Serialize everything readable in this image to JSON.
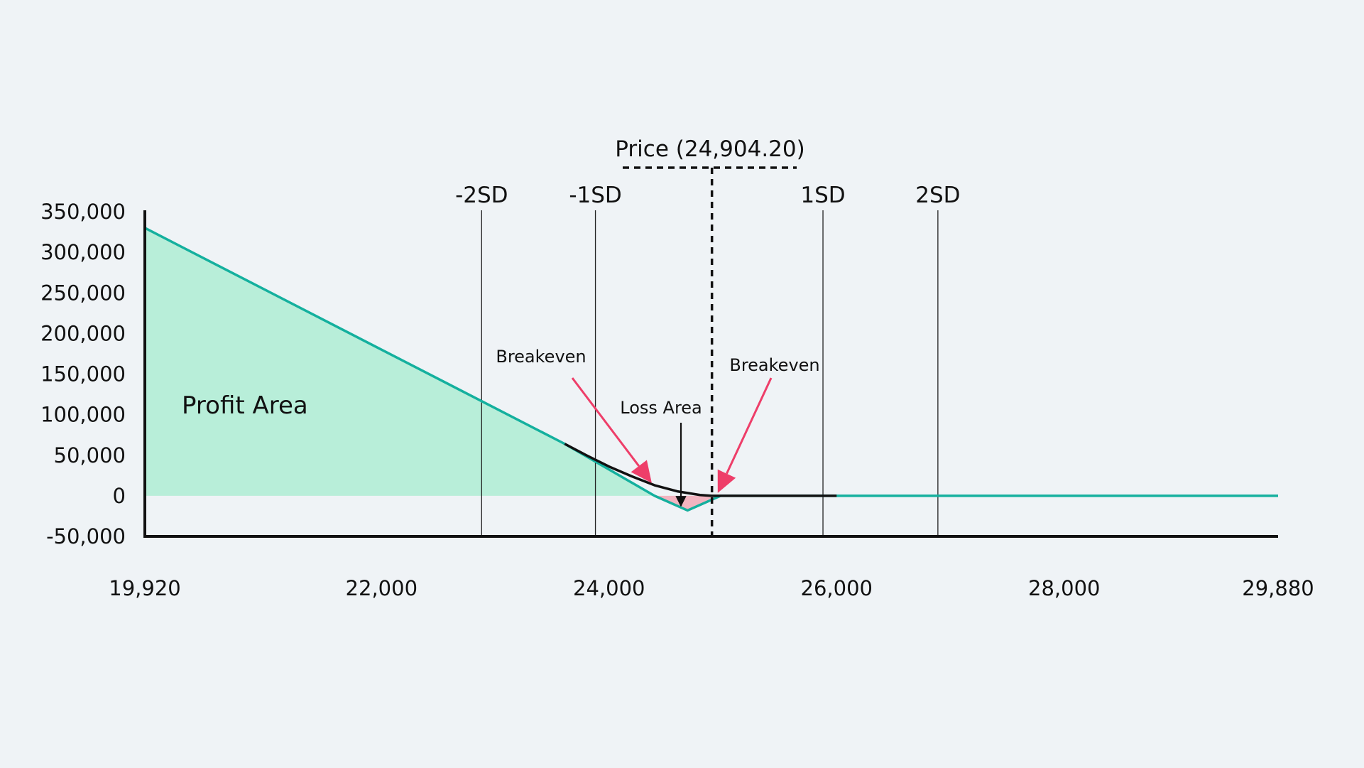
{
  "chart_data": {
    "type": "area",
    "title": "",
    "xlabel": "",
    "ylabel": "",
    "xlim": [
      19920,
      29880
    ],
    "ylim": [
      -50000,
      350000
    ],
    "x_ticks": [
      {
        "value": 19920,
        "label": "19,920"
      },
      {
        "value": 22000,
        "label": "22,000"
      },
      {
        "value": 24000,
        "label": "24,000"
      },
      {
        "value": 26000,
        "label": "26,000"
      },
      {
        "value": 28000,
        "label": "28,000"
      },
      {
        "value": 29880,
        "label": "29,880"
      }
    ],
    "y_ticks": [
      {
        "value": 350000,
        "label": "350,000"
      },
      {
        "value": 300000,
        "label": "300,000"
      },
      {
        "value": 250000,
        "label": "250,000"
      },
      {
        "value": 200000,
        "label": "200,000"
      },
      {
        "value": 150000,
        "label": "150,000"
      },
      {
        "value": 100000,
        "label": "100,000"
      },
      {
        "value": 50000,
        "label": "50,000"
      },
      {
        "value": 0,
        "label": "0"
      },
      {
        "value": -50000,
        "label": "-50,000"
      }
    ],
    "series": [
      {
        "x": [
          19920,
          23610,
          24400,
          24690,
          24980,
          25000,
          29880
        ],
        "y": [
          330000,
          64000,
          0,
          -18000,
          0,
          0,
          0
        ],
        "color": "#14b09e"
      },
      {
        "x": [
          23610,
          23800,
          24000,
          24200,
          24400,
          24600,
          24800,
          24904.2,
          25200,
          25500,
          26000
        ],
        "y": [
          64000,
          50000,
          36000,
          24000,
          13000,
          5500,
          1000,
          0,
          0,
          0,
          0
        ],
        "color": "#111111"
      }
    ],
    "regions": [
      {
        "label": "Profit Area",
        "color": "#b8eed9"
      },
      {
        "label": "Loss Area",
        "color": "#f2b4c0"
      }
    ],
    "vertical_lines": [
      {
        "x": 22880,
        "label": "-2SD"
      },
      {
        "x": 23880,
        "label": "-1SD"
      },
      {
        "x": 25880,
        "label": "1SD"
      },
      {
        "x": 26890,
        "label": "2SD"
      }
    ],
    "price_line": {
      "x": 24904.2,
      "label": "Price (24,904.20)"
    },
    "annotations": [
      {
        "text": "Breakeven",
        "x": 24400
      },
      {
        "text": "Breakeven",
        "x": 24980
      },
      {
        "text": "Loss Area",
        "x": 24690
      }
    ],
    "grid": false,
    "legend": "none",
    "colors": {
      "profit_line": "#14b09e",
      "profit_fill": "#b8eed9",
      "loss_fill": "#f2b4c0",
      "arrow": "#ee3e69",
      "axis": "#111111"
    }
  }
}
